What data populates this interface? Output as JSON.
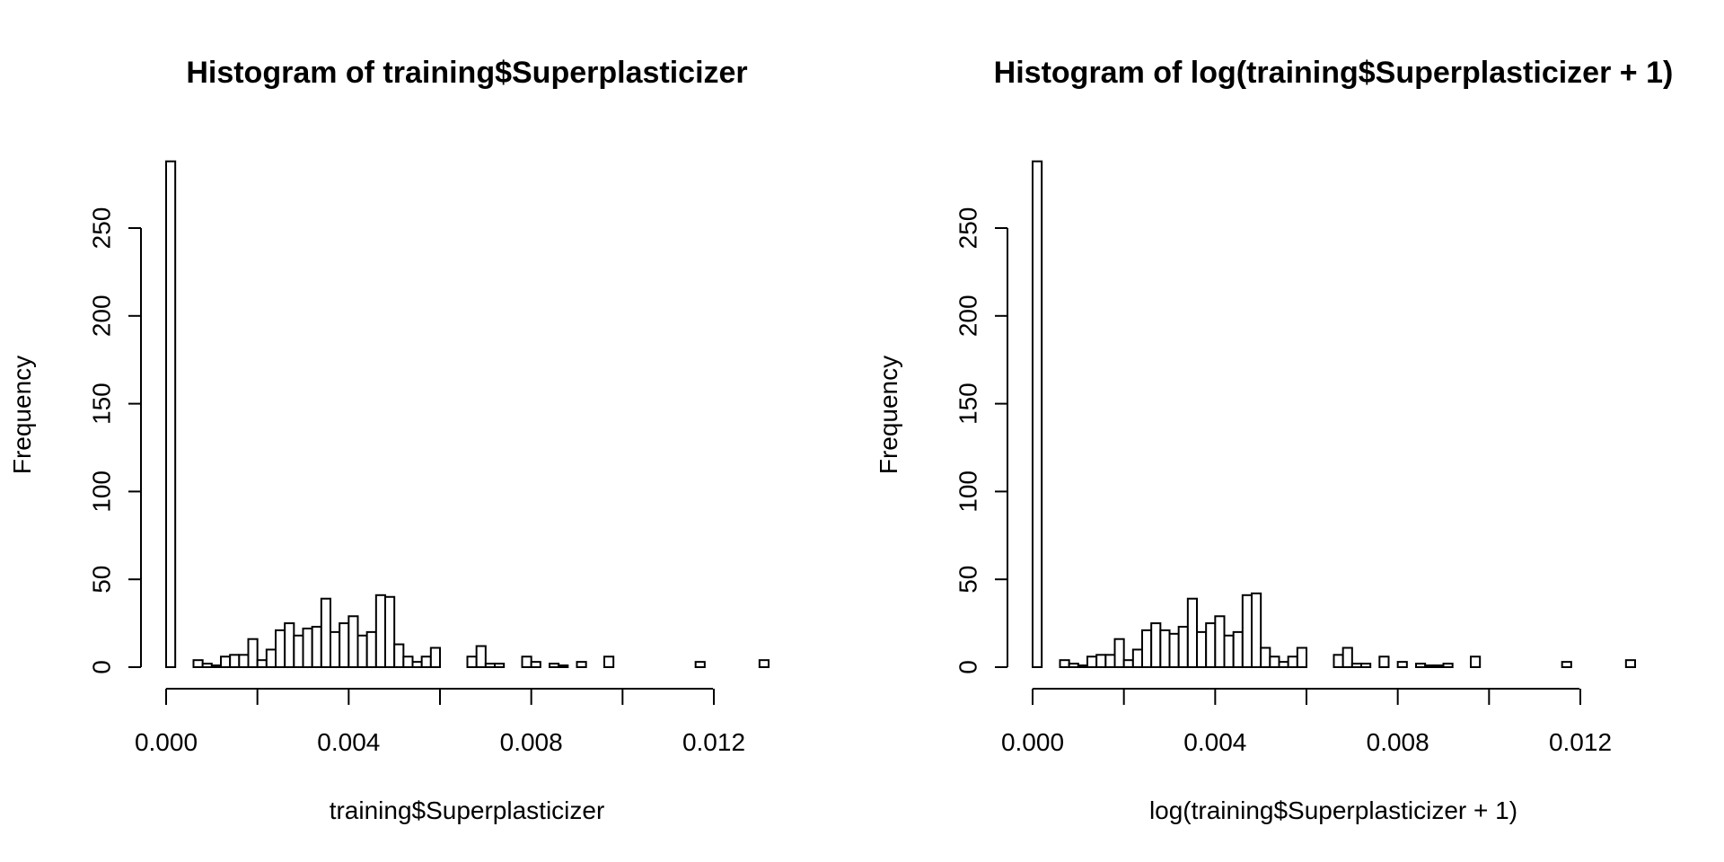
{
  "chart_data": [
    {
      "type": "bar",
      "title": "Histogram of training$Superplasticizer",
      "xlabel": "training$Superplasticizer",
      "ylabel": "Frequency",
      "bin_width": 0.0002,
      "bin_starts": [
        0.0,
        0.0002,
        0.0004,
        0.0006,
        0.0008,
        0.001,
        0.0012,
        0.0014,
        0.0016,
        0.0018,
        0.002,
        0.0022,
        0.0024,
        0.0026,
        0.0028,
        0.003,
        0.0032,
        0.0034,
        0.0036,
        0.0038,
        0.004,
        0.0042,
        0.0044,
        0.0046,
        0.0048,
        0.005,
        0.0052,
        0.0054,
        0.0056,
        0.0058,
        0.006,
        0.0062,
        0.0064,
        0.0066,
        0.0068,
        0.007,
        0.0072,
        0.0074,
        0.0076,
        0.0078,
        0.008,
        0.0082,
        0.0084,
        0.0086,
        0.0088,
        0.009,
        0.0092,
        0.0094,
        0.0096,
        0.0098,
        0.01,
        0.0102,
        0.0104,
        0.0106,
        0.0108,
        0.011,
        0.0112,
        0.0114,
        0.0116,
        0.0118,
        0.012,
        0.0122,
        0.0124,
        0.0126,
        0.0128,
        0.013
      ],
      "values": [
        288,
        0,
        0,
        4,
        2,
        1,
        6,
        7,
        7,
        16,
        4,
        10,
        21,
        25,
        18,
        22,
        23,
        39,
        20,
        25,
        29,
        18,
        20,
        41,
        40,
        13,
        6,
        3,
        6,
        11,
        0,
        0,
        0,
        6,
        12,
        2,
        2,
        0,
        0,
        6,
        3,
        0,
        2,
        1,
        0,
        3,
        0,
        0,
        6,
        0,
        0,
        0,
        0,
        0,
        0,
        0,
        0,
        0,
        3,
        0,
        0,
        0,
        0,
        0,
        0,
        4
      ],
      "x_ticks": [
        "0.000",
        "0.004",
        "0.008",
        "0.012"
      ],
      "y_ticks": [
        "0",
        "50",
        "100",
        "150",
        "200",
        "250"
      ],
      "xlim": [
        0,
        0.012
      ],
      "ylim": [
        0,
        250
      ]
    },
    {
      "type": "bar",
      "title": "Histogram of log(training$Superplasticizer + 1)",
      "xlabel": "log(training$Superplasticizer + 1)",
      "ylabel": "Frequency",
      "bin_width": 0.0002,
      "bin_starts": [
        0.0,
        0.0002,
        0.0004,
        0.0006,
        0.0008,
        0.001,
        0.0012,
        0.0014,
        0.0016,
        0.0018,
        0.002,
        0.0022,
        0.0024,
        0.0026,
        0.0028,
        0.003,
        0.0032,
        0.0034,
        0.0036,
        0.0038,
        0.004,
        0.0042,
        0.0044,
        0.0046,
        0.0048,
        0.005,
        0.0052,
        0.0054,
        0.0056,
        0.0058,
        0.006,
        0.0062,
        0.0064,
        0.0066,
        0.0068,
        0.007,
        0.0072,
        0.0074,
        0.0076,
        0.0078,
        0.008,
        0.0082,
        0.0084,
        0.0086,
        0.0088,
        0.009,
        0.0092,
        0.0094,
        0.0096,
        0.0098,
        0.01,
        0.0102,
        0.0104,
        0.0106,
        0.0108,
        0.011,
        0.0112,
        0.0114,
        0.0116,
        0.0118,
        0.012,
        0.0122,
        0.0124,
        0.0126,
        0.0128,
        0.013
      ],
      "values": [
        288,
        0,
        0,
        4,
        2,
        1,
        6,
        7,
        7,
        16,
        4,
        10,
        21,
        25,
        21,
        19,
        23,
        39,
        20,
        25,
        29,
        18,
        20,
        41,
        42,
        11,
        6,
        3,
        6,
        11,
        0,
        0,
        0,
        7,
        11,
        2,
        2,
        0,
        6,
        0,
        3,
        0,
        2,
        1,
        1,
        2,
        0,
        0,
        6,
        0,
        0,
        0,
        0,
        0,
        0,
        0,
        0,
        0,
        3,
        0,
        0,
        0,
        0,
        0,
        0,
        4
      ],
      "x_ticks": [
        "0.000",
        "0.004",
        "0.008",
        "0.012"
      ],
      "y_ticks": [
        "0",
        "50",
        "100",
        "150",
        "200",
        "250"
      ],
      "xlim": [
        0,
        0.012
      ],
      "ylim": [
        0,
        250
      ]
    }
  ]
}
